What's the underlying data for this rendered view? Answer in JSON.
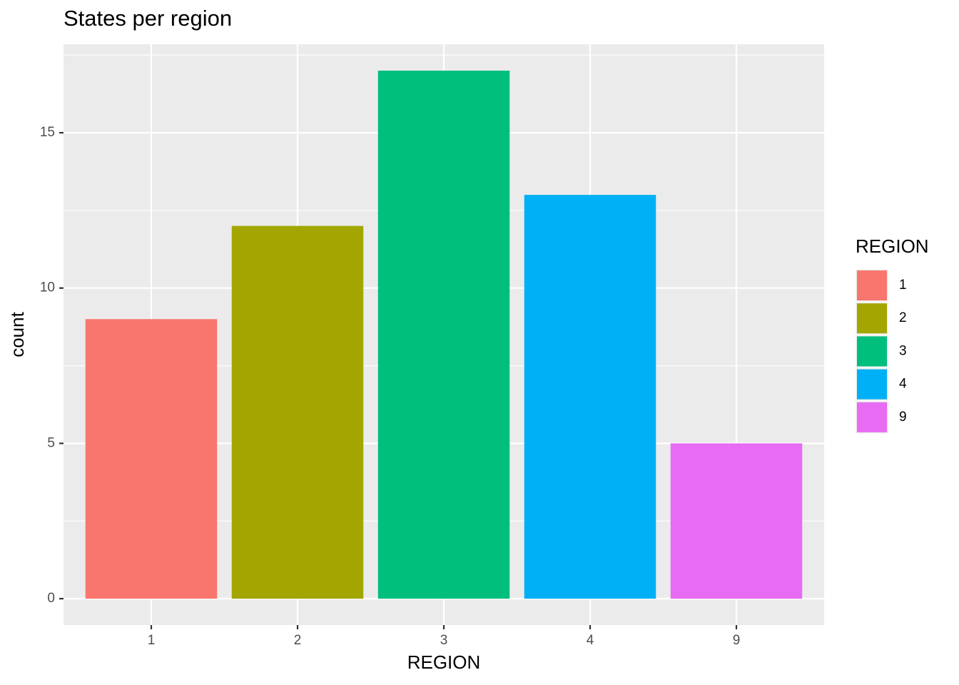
{
  "chart_data": {
    "type": "bar",
    "title": "States per region",
    "xlabel": "REGION",
    "ylabel": "count",
    "legend_title": "REGION",
    "categories": [
      "1",
      "2",
      "3",
      "4",
      "9"
    ],
    "values": [
      9,
      12,
      17,
      13,
      5
    ],
    "colors": [
      "#f8766d",
      "#a3a500",
      "#00bf7d",
      "#00b0f6",
      "#e76bf3"
    ],
    "ylim": [
      -0.85,
      17.85
    ],
    "yticks": [
      0,
      5,
      10,
      15
    ],
    "minor_yticks": [
      2.5,
      7.5,
      12.5,
      17.5
    ],
    "grid": true,
    "legend": "right"
  }
}
